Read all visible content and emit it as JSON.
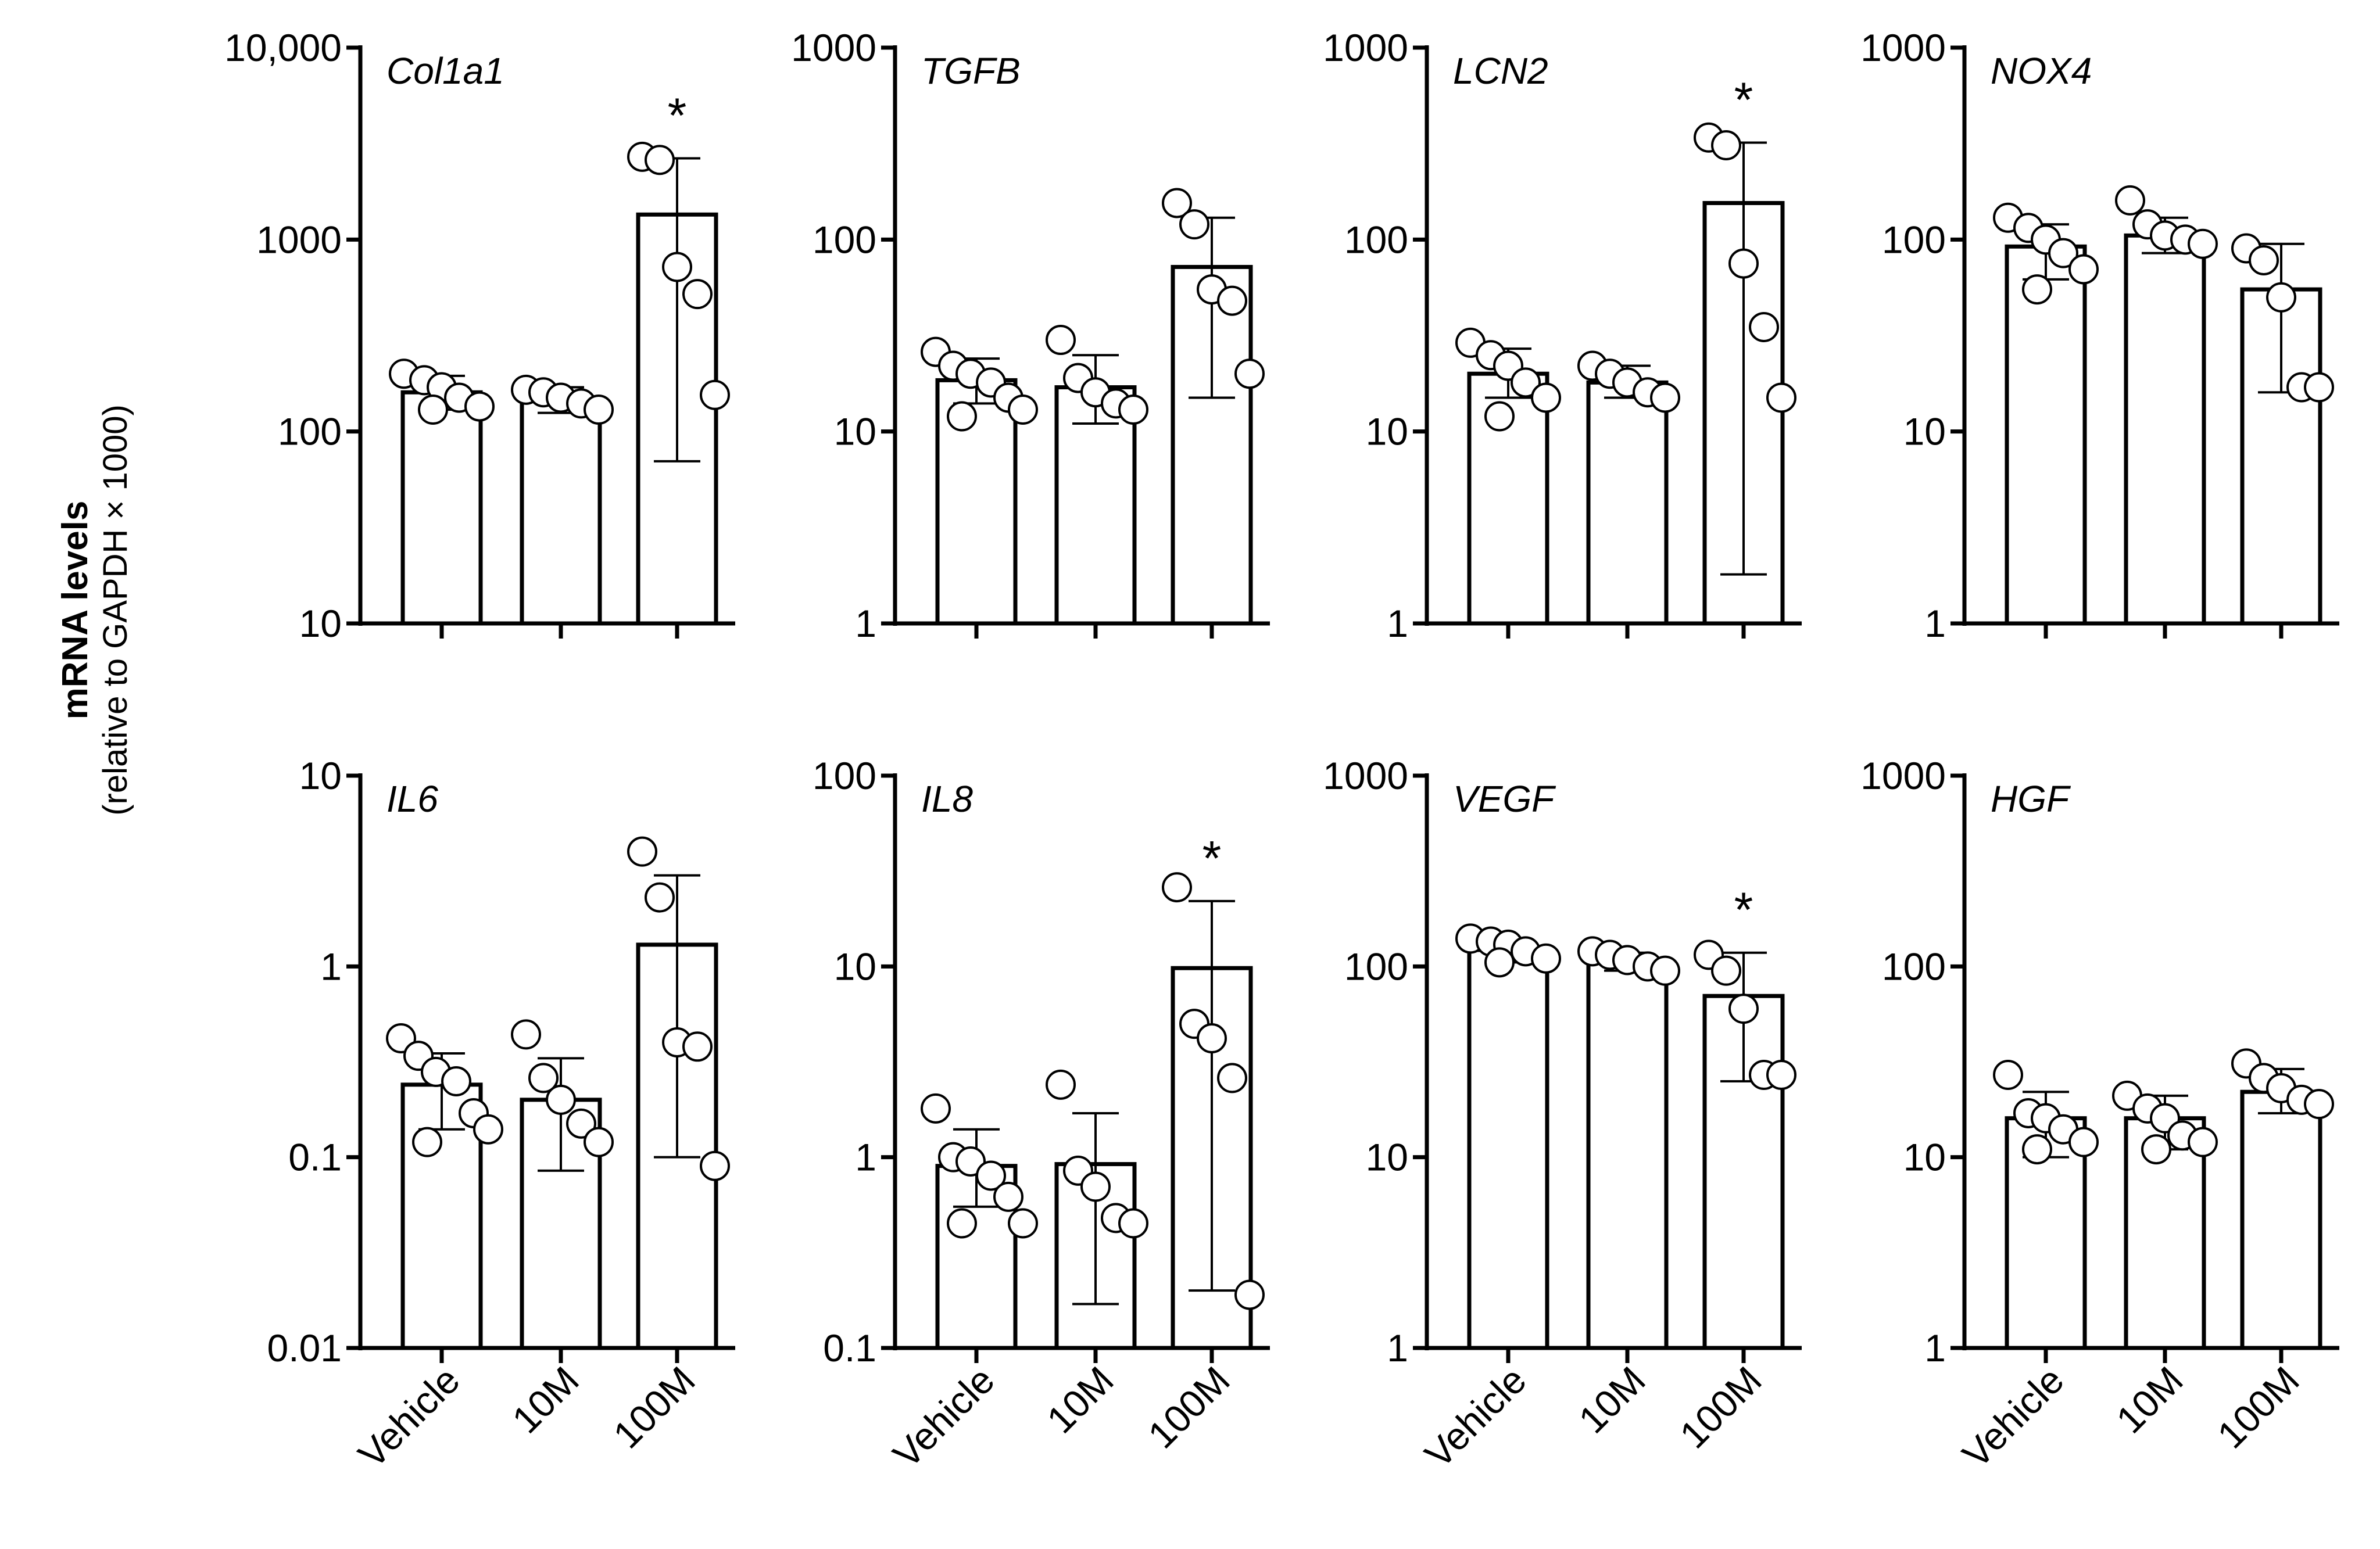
{
  "y_axis": {
    "label": "mRNA levels",
    "sublabel": "(relative to GAPDH × 1000)"
  },
  "chart_data": [
    {
      "type": "bar",
      "title": "Col1a1",
      "scale": "log",
      "ylim": [
        10,
        10000
      ],
      "ticks": [
        "10",
        "100",
        "1000",
        "10,000"
      ],
      "categories": [
        "Vehicle",
        "10M",
        "100M"
      ],
      "means": [
        160,
        145,
        1350
      ],
      "err_low": [
        130,
        125,
        70
      ],
      "err_high": [
        195,
        170,
        2650
      ],
      "points": [
        [
          200,
          185,
          170,
          150,
          135,
          130
        ],
        [
          165,
          160,
          150,
          140,
          130
        ],
        [
          2700,
          2600,
          720,
          520,
          155
        ]
      ],
      "significant": [
        false,
        false,
        true
      ]
    },
    {
      "type": "bar",
      "title": "TGFB",
      "scale": "log",
      "ylim": [
        1,
        1000
      ],
      "ticks": [
        "1",
        "10",
        "100",
        "1000"
      ],
      "categories": [
        "Vehicle",
        "10M",
        "100M"
      ],
      "means": [
        18.5,
        17,
        72
      ],
      "err_low": [
        14,
        11,
        15
      ],
      "err_high": [
        24,
        25,
        130
      ],
      "points": [
        [
          26,
          22,
          20,
          18,
          15,
          13,
          12
        ],
        [
          30,
          19,
          16,
          14,
          13
        ],
        [
          155,
          120,
          55,
          48,
          20
        ]
      ],
      "significant": [
        false,
        false,
        false
      ]
    },
    {
      "type": "bar",
      "title": "LCN2",
      "scale": "log",
      "ylim": [
        1,
        1000
      ],
      "ticks": [
        "1",
        "10",
        "100",
        "1000"
      ],
      "categories": [
        "Vehicle",
        "10M",
        "100M"
      ],
      "means": [
        20,
        18,
        155
      ],
      "err_low": [
        15,
        15,
        1.8
      ],
      "err_high": [
        27,
        22,
        320
      ],
      "points": [
        [
          29,
          25,
          22,
          18,
          15,
          12
        ],
        [
          22,
          20,
          18,
          16,
          15
        ],
        [
          340,
          310,
          75,
          35,
          15
        ]
      ],
      "significant": [
        false,
        false,
        true
      ]
    },
    {
      "type": "bar",
      "title": "NOX4",
      "scale": "log",
      "ylim": [
        1,
        1000
      ],
      "ticks": [
        "1",
        "10",
        "100",
        "1000"
      ],
      "categories": [
        "Vehicle",
        "10M",
        "100M"
      ],
      "means": [
        92,
        105,
        55
      ],
      "err_low": [
        62,
        85,
        16
      ],
      "err_high": [
        120,
        130,
        95
      ],
      "points": [
        [
          130,
          115,
          100,
          85,
          70,
          55
        ],
        [
          160,
          120,
          105,
          100,
          95
        ],
        [
          90,
          78,
          50,
          17,
          17
        ]
      ],
      "significant": [
        false,
        false,
        false
      ]
    },
    {
      "type": "bar",
      "title": "IL6",
      "scale": "log",
      "ylim": [
        0.01,
        10
      ],
      "ticks": [
        "0.01",
        "0.1",
        "1",
        "10"
      ],
      "categories": [
        "Vehicle",
        "10M",
        "100M"
      ],
      "means": [
        0.24,
        0.2,
        1.3
      ],
      "err_low": [
        0.14,
        0.085,
        0.1
      ],
      "err_high": [
        0.35,
        0.33,
        3.0
      ],
      "points": [
        [
          0.42,
          0.34,
          0.28,
          0.25,
          0.17,
          0.14,
          0.12
        ],
        [
          0.44,
          0.26,
          0.2,
          0.15,
          0.12
        ],
        [
          4.0,
          2.3,
          0.4,
          0.38,
          0.09
        ]
      ],
      "significant": [
        false,
        false,
        false
      ]
    },
    {
      "type": "bar",
      "title": "IL8",
      "scale": "log",
      "ylim": [
        0.1,
        100
      ],
      "ticks": [
        "0.1",
        "1",
        "10",
        "100"
      ],
      "categories": [
        "Vehicle",
        "10M",
        "100M"
      ],
      "means": [
        0.9,
        0.92,
        9.8
      ],
      "err_low": [
        0.55,
        0.17,
        0.2
      ],
      "err_high": [
        1.4,
        1.7,
        22
      ],
      "points": [
        [
          1.8,
          1.0,
          0.95,
          0.8,
          0.62,
          0.45,
          0.45
        ],
        [
          2.4,
          0.85,
          0.7,
          0.48,
          0.45
        ],
        [
          26,
          5.0,
          4.2,
          2.6,
          0.19
        ]
      ],
      "significant": [
        false,
        false,
        true
      ]
    },
    {
      "type": "bar",
      "title": "VEGF",
      "scale": "log",
      "ylim": [
        1,
        1000
      ],
      "ticks": [
        "1",
        "10",
        "100",
        "1000"
      ],
      "categories": [
        "Vehicle",
        "10M",
        "100M"
      ],
      "means": [
        122,
        105,
        70
      ],
      "err_low": [
        105,
        95,
        25
      ],
      "err_high": [
        135,
        118,
        118
      ],
      "points": [
        [
          140,
          135,
          130,
          120,
          110,
          105
        ],
        [
          120,
          115,
          108,
          100,
          95
        ],
        [
          115,
          95,
          60,
          27,
          27
        ]
      ],
      "significant": [
        false,
        false,
        true
      ]
    },
    {
      "type": "bar",
      "title": "HGF",
      "scale": "log",
      "ylim": [
        1,
        1000
      ],
      "ticks": [
        "1",
        "10",
        "100",
        "1000"
      ],
      "categories": [
        "Vehicle",
        "10M",
        "100M"
      ],
      "means": [
        16,
        16,
        22
      ],
      "err_low": [
        10,
        11,
        17
      ],
      "err_high": [
        22,
        21,
        29
      ],
      "points": [
        [
          27,
          17,
          16,
          14,
          12,
          11
        ],
        [
          21,
          18,
          16,
          13,
          12,
          11
        ],
        [
          31,
          26,
          23,
          20,
          19
        ]
      ],
      "significant": [
        false,
        false,
        false
      ]
    }
  ]
}
